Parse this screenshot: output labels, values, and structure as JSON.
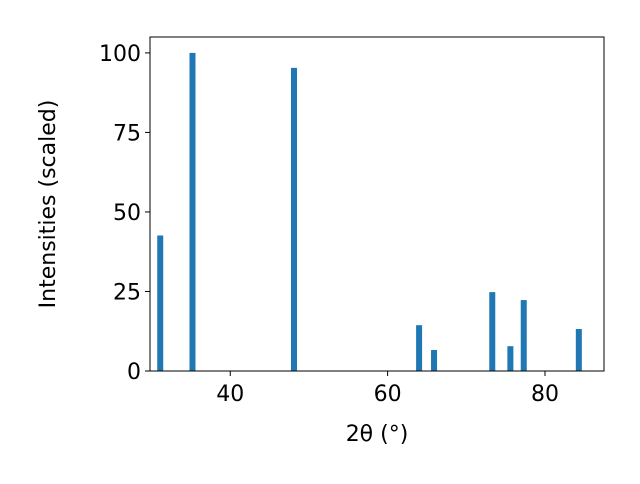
{
  "chart_data": {
    "type": "bar",
    "x_label": "2θ (°)",
    "y_label": "Intensities (scaled)",
    "x": [
      31.1,
      35.2,
      48.1,
      64.0,
      65.9,
      73.3,
      75.6,
      77.3,
      84.3
    ],
    "values": [
      42.6,
      100,
      95.3,
      14.4,
      6.6,
      24.8,
      7.8,
      22.3,
      13.2
    ],
    "color": "#1f77b4",
    "xlim": [
      29.8,
      87.5
    ],
    "xticks": [
      40,
      60,
      80
    ],
    "ylim": [
      0,
      105
    ],
    "yticks": [
      0,
      25,
      50,
      75,
      100
    ],
    "grid": false
  }
}
